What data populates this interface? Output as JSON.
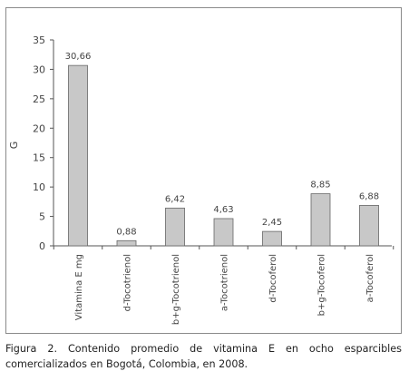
{
  "chart_data": {
    "type": "bar",
    "ylabel": "G",
    "xlabel": "",
    "ylim": [
      0,
      35
    ],
    "yticks": [
      0,
      5,
      10,
      15,
      20,
      25,
      30,
      35
    ],
    "ytick_labels": [
      "0",
      "5",
      "10",
      "15",
      "20",
      "25",
      "30",
      "35"
    ],
    "categories": [
      "Vitamina E mg",
      "d-Tocotrienol",
      "b+g-Tocotrienol",
      "a-Tocotrienol",
      "d-Tocoferol",
      "b+g-Tocoferol",
      "a-Tocoferol"
    ],
    "values": [
      30.66,
      0.88,
      6.42,
      4.63,
      2.45,
      8.85,
      6.88
    ],
    "value_labels": [
      "30,66",
      "0,88",
      "6,42",
      "4,63",
      "2,45",
      "8,85",
      "6,88"
    ],
    "grid": false,
    "bar_color": "#c8c8c8",
    "bar_edge_color": "#666666"
  },
  "caption": {
    "label": "Figura 2.",
    "text": "Contenido promedio de vitamina E en ocho esparcibles comercializados en Bogotá, Colombia, en 2008."
  }
}
